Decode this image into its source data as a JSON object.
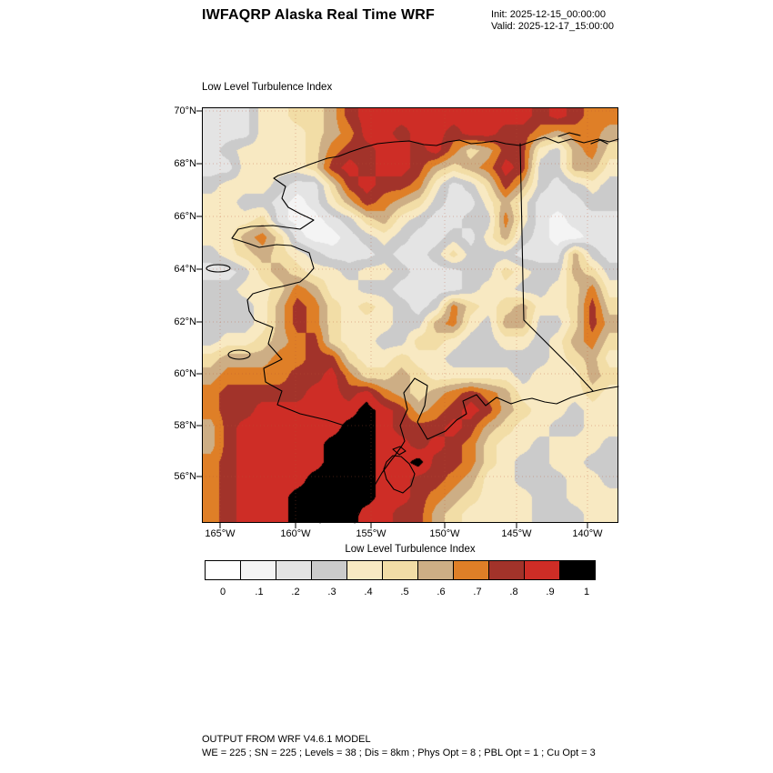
{
  "header": {
    "title": "IWFAQRP Alaska Real Time WRF",
    "init_line": "Init: 2025-12-15_00:00:00",
    "valid_line": "Valid: 2025-12-17_15:00:00"
  },
  "map": {
    "field_label": "Low Level Turbulence Index",
    "lat_ticks": [
      "70°N",
      "68°N",
      "66°N",
      "64°N",
      "62°N",
      "60°N",
      "58°N",
      "56°N"
    ],
    "lon_ticks": [
      "165°W",
      "160°W",
      "155°W",
      "150°W",
      "145°W",
      "140°W"
    ]
  },
  "colorbar": {
    "title": "Low Level Turbulence Index",
    "tick_labels": [
      "0",
      ".1",
      ".2",
      ".3",
      ".4",
      ".5",
      ".6",
      ".7",
      ".8",
      ".9",
      "1"
    ],
    "colors": [
      "#FFFFFF",
      "#F4F4F4",
      "#E4E4E4",
      "#CBCBCB",
      "#F8E9C2",
      "#F2DDA6",
      "#CDAE85",
      "#DF7F27",
      "#A2332A",
      "#CE2D26",
      "#000000"
    ]
  },
  "footer": {
    "line1": "OUTPUT FROM WRF V4.6.1 MODEL",
    "line2": "WE = 225 ; SN = 225 ; Levels = 38 ; Dis = 8km ; Phys Opt = 8 ; PBL Opt = 1 ; Cu Opt = 3"
  },
  "chart_data": {
    "type": "heatmap",
    "title": "Low Level Turbulence Index",
    "x_ticks": [
      "165°W",
      "160°W",
      "155°W",
      "150°W",
      "145°W",
      "140°W"
    ],
    "y_ticks": [
      "70°N",
      "68°N",
      "66°N",
      "64°N",
      "62°N",
      "60°N",
      "58°N",
      "56°N"
    ],
    "levels": [
      0,
      0.1,
      0.2,
      0.3,
      0.4,
      0.5,
      0.6,
      0.7,
      0.8,
      0.9,
      1
    ],
    "level_colors": [
      "#FFFFFF",
      "#F4F4F4",
      "#E4E4E4",
      "#CBCBCB",
      "#F8E9C2",
      "#F2DDA6",
      "#CDAE85",
      "#DF7F27",
      "#A2332A",
      "#CE2D26",
      "#000000"
    ],
    "grid_rows": 24,
    "grid_cols": 24,
    "value_scale": 0.1,
    "values_x10": [
      [
        2,
        2,
        2,
        4,
        4,
        5,
        5,
        6,
        8,
        9,
        9,
        9,
        9,
        9,
        9,
        9,
        9,
        9,
        9,
        8,
        9,
        8,
        7,
        7
      ],
      [
        2,
        2,
        2,
        4,
        4,
        4,
        5,
        6,
        7,
        9,
        9,
        8,
        9,
        9,
        8,
        9,
        9,
        8,
        8,
        7,
        6,
        7,
        7,
        6
      ],
      [
        2,
        3,
        4,
        4,
        4,
        4,
        5,
        7,
        8,
        8,
        9,
        9,
        8,
        9,
        7,
        5,
        6,
        8,
        8,
        4,
        3,
        6,
        7,
        5
      ],
      [
        2,
        2,
        4,
        4,
        4,
        4,
        5,
        8,
        9,
        8,
        9,
        9,
        8,
        6,
        5,
        6,
        7,
        9,
        8,
        3,
        3,
        6,
        6,
        4
      ],
      [
        3,
        4,
        4,
        4,
        3,
        2,
        2,
        5,
        8,
        9,
        8,
        8,
        7,
        4,
        2,
        3,
        5,
        8,
        6,
        3,
        2,
        3,
        4,
        3
      ],
      [
        4,
        4,
        3,
        3,
        2,
        1,
        2,
        4,
        6,
        8,
        7,
        6,
        5,
        3,
        2,
        2,
        4,
        6,
        4,
        2,
        2,
        2,
        3,
        3
      ],
      [
        4,
        4,
        4,
        5,
        2,
        1,
        1,
        2,
        3,
        5,
        6,
        4,
        3,
        2,
        2,
        3,
        3,
        7,
        4,
        2,
        1,
        2,
        2,
        2
      ],
      [
        4,
        4,
        6,
        7,
        5,
        2,
        1,
        1,
        2,
        3,
        4,
        3,
        2,
        2,
        3,
        2,
        4,
        6,
        3,
        2,
        1,
        1,
        2,
        2
      ],
      [
        3,
        4,
        5,
        6,
        5,
        4,
        3,
        2,
        2,
        2,
        3,
        2,
        2,
        3,
        5,
        3,
        3,
        3,
        2,
        2,
        2,
        6,
        3,
        2
      ],
      [
        2,
        2,
        3,
        5,
        6,
        5,
        4,
        4,
        3,
        4,
        4,
        3,
        2,
        2,
        2,
        3,
        3,
        5,
        4,
        3,
        3,
        6,
        5,
        3
      ],
      [
        3,
        3,
        4,
        4,
        5,
        7,
        6,
        4,
        4,
        3,
        3,
        2,
        2,
        2,
        2,
        3,
        4,
        4,
        3,
        3,
        4,
        5,
        7,
        4
      ],
      [
        3,
        3,
        3,
        4,
        6,
        8,
        7,
        5,
        4,
        5,
        4,
        3,
        2,
        3,
        7,
        5,
        4,
        5,
        6,
        4,
        4,
        5,
        8,
        5
      ],
      [
        3,
        3,
        3,
        4,
        6,
        8,
        7,
        5,
        4,
        4,
        4,
        3,
        3,
        6,
        7,
        4,
        3,
        6,
        6,
        3,
        3,
        5,
        8,
        6
      ],
      [
        3,
        4,
        4,
        5,
        6,
        7,
        8,
        5,
        4,
        4,
        3,
        3,
        5,
        5,
        4,
        3,
        3,
        4,
        4,
        3,
        4,
        6,
        7,
        5
      ],
      [
        5,
        6,
        6,
        6,
        7,
        7,
        8,
        8,
        5,
        4,
        4,
        5,
        4,
        4,
        3,
        3,
        3,
        3,
        3,
        3,
        4,
        5,
        6,
        4
      ],
      [
        6,
        7,
        7,
        7,
        7,
        8,
        8,
        9,
        7,
        5,
        5,
        6,
        5,
        4,
        4,
        4,
        4,
        4,
        3,
        4,
        4,
        4,
        6,
        5
      ],
      [
        7,
        8,
        8,
        8,
        8,
        8,
        9,
        9,
        8,
        9,
        7,
        6,
        5,
        6,
        7,
        8,
        7,
        6,
        4,
        4,
        4,
        4,
        5,
        4
      ],
      [
        7,
        8,
        8,
        9,
        9,
        9,
        9,
        9,
        9,
        10,
        9,
        8,
        6,
        7,
        8,
        9,
        8,
        6,
        5,
        4,
        4,
        3,
        4,
        4
      ],
      [
        6,
        8,
        9,
        9,
        9,
        9,
        9,
        9,
        10,
        10,
        9,
        8,
        8,
        8,
        9,
        8,
        6,
        5,
        4,
        4,
        3,
        3,
        4,
        4
      ],
      [
        6,
        8,
        9,
        9,
        9,
        9,
        9,
        10,
        10,
        10,
        9,
        9,
        8,
        9,
        8,
        7,
        5,
        4,
        4,
        3,
        4,
        4,
        4,
        3
      ],
      [
        7,
        8,
        9,
        9,
        9,
        9,
        9,
        10,
        10,
        10,
        9,
        9,
        10,
        8,
        8,
        7,
        5,
        4,
        3,
        3,
        4,
        4,
        3,
        3
      ],
      [
        7,
        8,
        9,
        9,
        9,
        9,
        10,
        10,
        10,
        10,
        9,
        9,
        8,
        8,
        7,
        6,
        4,
        4,
        3,
        3,
        3,
        4,
        4,
        3
      ],
      [
        7,
        8,
        9,
        9,
        9,
        10,
        10,
        10,
        10,
        10,
        9,
        9,
        8,
        7,
        6,
        5,
        4,
        4,
        4,
        3,
        3,
        4,
        4,
        4
      ],
      [
        7,
        8,
        9,
        9,
        9,
        10,
        10,
        10,
        10,
        9,
        9,
        8,
        8,
        6,
        5,
        4,
        4,
        4,
        4,
        3,
        3,
        3,
        4,
        4
      ]
    ]
  }
}
